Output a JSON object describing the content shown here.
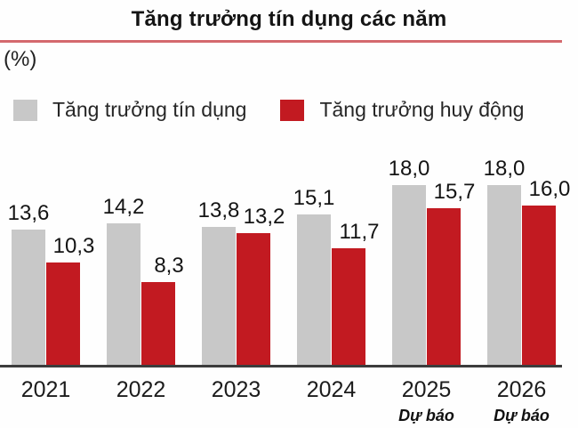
{
  "title": "Tăng trưởng tín dụng các năm",
  "unit_label": "(%)",
  "colors": {
    "credit_gray": "#c8c8c8",
    "deposit_red": "#c21a21",
    "title_underline": "#d4696e",
    "axis": "#3c3c3c"
  },
  "legend": [
    {
      "label": "Tăng trưởng tín dụng",
      "color": "#c8c8c8"
    },
    {
      "label": "Tăng trưởng huy động",
      "color": "#c21a21"
    }
  ],
  "chart_data": {
    "type": "bar",
    "title": "Tăng trưởng tín dụng các năm",
    "unit": "%",
    "categories": [
      "2021",
      "2022",
      "2023",
      "2024",
      "2025",
      "2026"
    ],
    "category_notes": [
      "",
      "",
      "",
      "",
      "Dự báo",
      "Dự báo"
    ],
    "series": [
      {
        "name": "Tăng trưởng tín dụng",
        "color": "#c8c8c8",
        "values": [
          13.6,
          14.2,
          13.8,
          15.1,
          18.0,
          18.0
        ]
      },
      {
        "name": "Tăng trưởng huy động",
        "color": "#c21a21",
        "values": [
          10.3,
          8.3,
          13.2,
          11.7,
          15.7,
          16.0
        ]
      }
    ],
    "value_label_format": "comma-decimal",
    "ylim": [
      0,
      18
    ],
    "grid": false,
    "legend_position": "top"
  }
}
